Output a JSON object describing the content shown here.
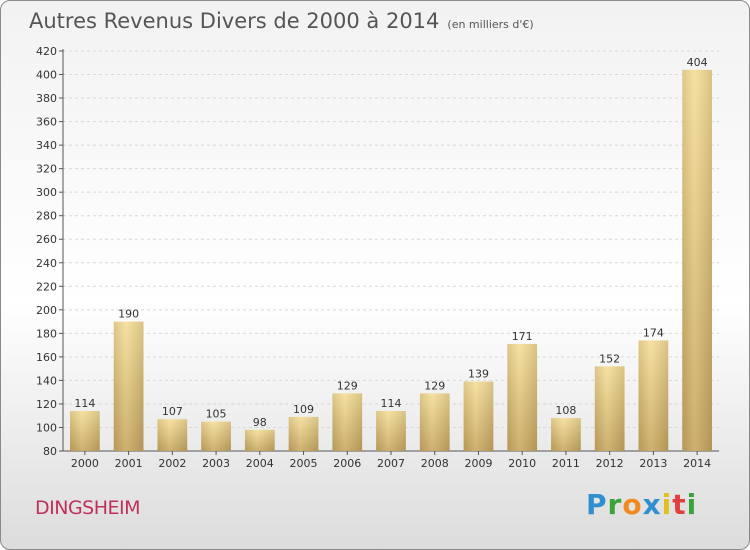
{
  "header": {
    "title": "Autres Revenus Divers de 2000 à 2014",
    "subtitle": "(en milliers d'€)"
  },
  "footer": {
    "place": "DINGSHEIM",
    "logo_text": "Proxiti"
  },
  "chart_data": {
    "type": "bar",
    "title": "Autres Revenus Divers de 2000 à 2014",
    "subtitle": "(en milliers d'€)",
    "xlabel": "",
    "ylabel": "",
    "categories": [
      "2000",
      "2001",
      "2002",
      "2003",
      "2004",
      "2005",
      "2006",
      "2007",
      "2008",
      "2009",
      "2010",
      "2011",
      "2012",
      "2013",
      "2014"
    ],
    "values": [
      114,
      190,
      107,
      105,
      98,
      109,
      129,
      114,
      129,
      139,
      171,
      108,
      152,
      174,
      404
    ],
    "ylim": [
      80,
      420
    ],
    "yticks": [
      80,
      100,
      120,
      140,
      160,
      180,
      200,
      220,
      240,
      260,
      280,
      300,
      320,
      340,
      360,
      380,
      400,
      420
    ],
    "grid": true,
    "bar_color": "#e8c878"
  }
}
